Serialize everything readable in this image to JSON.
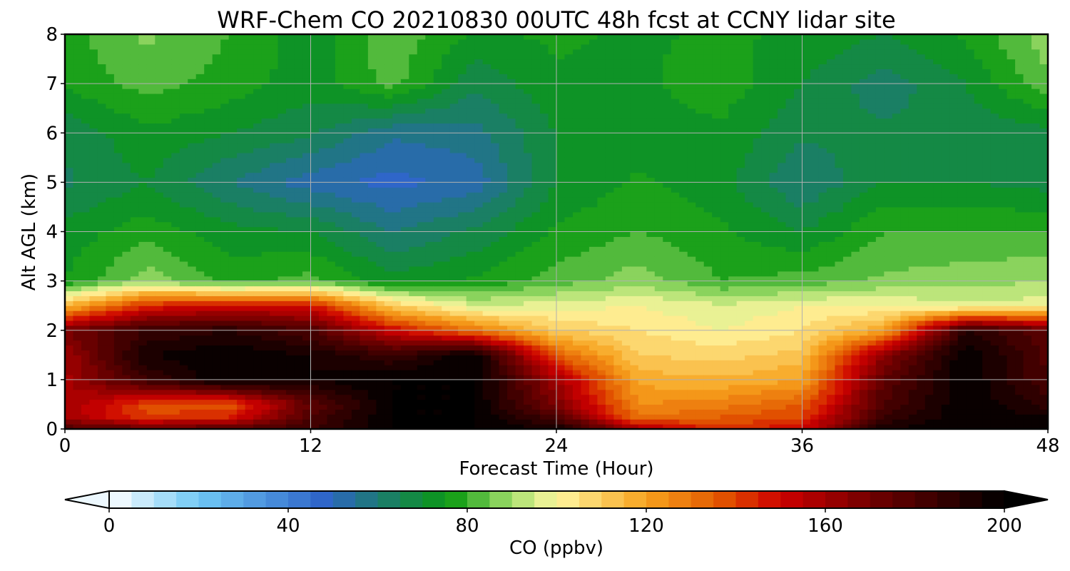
{
  "chart_data": {
    "type": "heatmap",
    "title": "WRF-Chem CO  20210830 00UTC 48h fcst at CCNY lidar site",
    "xlabel": "Forecast Time (Hour)",
    "ylabel": "Alt AGL (km)",
    "xlim": [
      0,
      48
    ],
    "ylim": [
      0,
      8
    ],
    "x_ticks": [
      "0",
      "12",
      "24",
      "36",
      "48"
    ],
    "y_ticks": [
      "0",
      "1",
      "2",
      "3",
      "4",
      "5",
      "6",
      "7",
      "8"
    ],
    "grid": true,
    "colorbar": {
      "label": "CO  (ppbv)",
      "min": 0,
      "max": 200,
      "ticks": [
        "0",
        "40",
        "80",
        "120",
        "160",
        "200"
      ],
      "extend": "both",
      "colors": [
        {
          "v": 0,
          "c": "#ffffff"
        },
        {
          "v": 20,
          "c": "#6fc8f5"
        },
        {
          "v": 48,
          "c": "#2e64c8"
        },
        {
          "v": 60,
          "c": "#1d7a74"
        },
        {
          "v": 76,
          "c": "#0a9a10"
        },
        {
          "v": 90,
          "c": "#a6df6e"
        },
        {
          "v": 100,
          "c": "#fff7a0"
        },
        {
          "v": 120,
          "c": "#f7a21e"
        },
        {
          "v": 136,
          "c": "#e35a00"
        },
        {
          "v": 150,
          "c": "#cd0000"
        },
        {
          "v": 172,
          "c": "#6a0000"
        },
        {
          "v": 200,
          "c": "#000000"
        }
      ]
    },
    "x": [
      0,
      4,
      8,
      12,
      16,
      20,
      24,
      28,
      32,
      36,
      40,
      44,
      48
    ],
    "y": [
      0,
      0.25,
      0.5,
      1,
      1.5,
      2,
      2.5,
      3,
      4,
      5,
      6,
      7,
      8
    ],
    "z": [
      [
        180,
        175,
        178,
        185,
        200,
        200,
        195,
        160,
        142,
        150,
        195,
        200,
        200
      ],
      [
        160,
        140,
        145,
        180,
        200,
        200,
        180,
        130,
        135,
        140,
        185,
        200,
        195
      ],
      [
        160,
        138,
        135,
        175,
        200,
        200,
        168,
        125,
        128,
        135,
        180,
        200,
        188
      ],
      [
        158,
        185,
        200,
        195,
        200,
        200,
        160,
        118,
        116,
        120,
        175,
        200,
        180
      ],
      [
        160,
        195,
        200,
        195,
        185,
        200,
        135,
        110,
        108,
        112,
        165,
        200,
        178
      ],
      [
        170,
        185,
        190,
        180,
        150,
        130,
        110,
        105,
        100,
        105,
        120,
        190,
        175
      ],
      [
        115,
        145,
        150,
        148,
        110,
        95,
        98,
        100,
        96,
        100,
        100,
        96,
        98
      ],
      [
        75,
        88,
        78,
        82,
        72,
        76,
        82,
        88,
        80,
        82,
        86,
        88,
        90
      ],
      [
        72,
        78,
        72,
        70,
        60,
        66,
        76,
        80,
        76,
        70,
        80,
        80,
        80
      ],
      [
        64,
        70,
        60,
        52,
        48,
        52,
        70,
        76,
        72,
        60,
        70,
        70,
        68
      ],
      [
        66,
        74,
        70,
        66,
        56,
        58,
        70,
        72,
        74,
        66,
        66,
        66,
        68
      ],
      [
        76,
        82,
        78,
        72,
        82,
        66,
        74,
        74,
        78,
        70,
        62,
        70,
        84
      ],
      [
        78,
        86,
        80,
        72,
        84,
        74,
        76,
        74,
        76,
        74,
        70,
        76,
        88
      ]
    ]
  }
}
